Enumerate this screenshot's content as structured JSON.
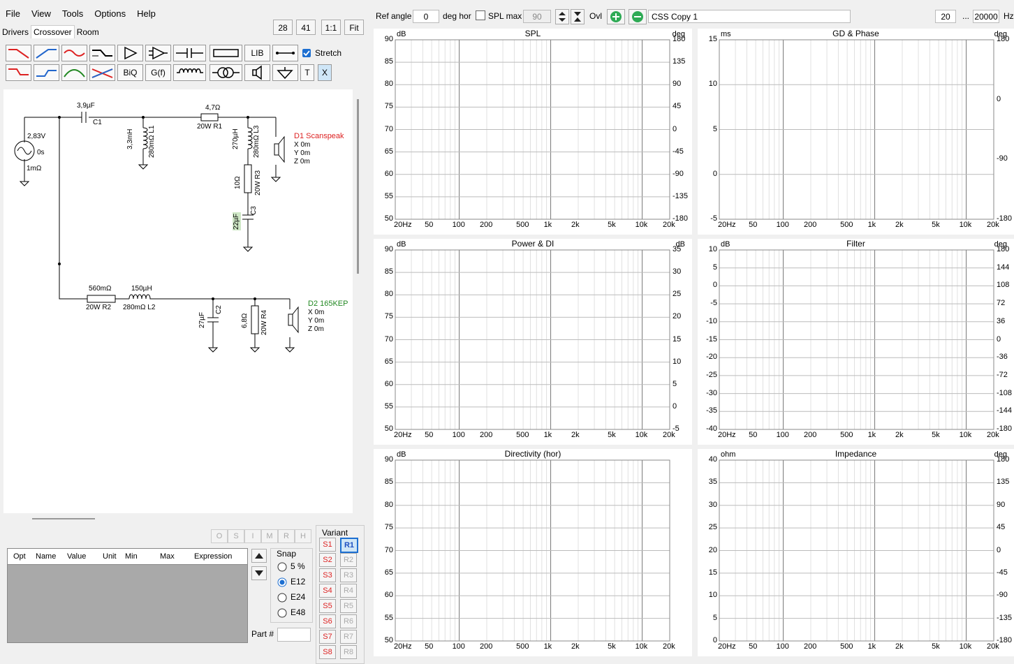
{
  "menu": [
    "File",
    "View",
    "Tools",
    "Options",
    "Help"
  ],
  "tabs": [
    "Drivers",
    "Crossover",
    "Room"
  ],
  "zoom_buttons": [
    "28",
    "41",
    "1:1",
    "Fit"
  ],
  "toolbar": {
    "lib": "LIB",
    "biq": "BiQ",
    "gf": "G(f)",
    "t": "T",
    "x": "X",
    "stretch_label": "Stretch"
  },
  "schematic": {
    "source_voltage": "2,83V",
    "source_delay": "0s",
    "source_res": "1mΩ",
    "c1_val": "3,9µF",
    "c1_name": "C1",
    "l1_val": "3,3mH",
    "l1_res": "280mΩ L1",
    "r1_val": "4,7Ω",
    "r1_name": "20W   R1",
    "l3_val": "270µH",
    "l3_res": "280mΩ L3",
    "r3_val": "10Ω",
    "r3_name": "20W  R3",
    "c3_val": "22µF",
    "c3_name": "C3",
    "d1_name": "D1 Scanspeak",
    "d1_x": "X 0m",
    "d1_y": "Y 0m",
    "d1_z": "Z 0m",
    "r2_val": "560mΩ",
    "r2_name": "20W   R2",
    "l2_val": "150µH",
    "l2_res": "280mΩ L2",
    "c2_val": "27µF",
    "c2_name": "C2",
    "r4_val": "6,8Ω",
    "r4_name": "20W  R4",
    "d2_name": "D2 165KEP",
    "d2_x": "X 0m",
    "d2_y": "Y 0m",
    "d2_z": "Z 0m"
  },
  "opt_buttons": [
    "O",
    "S",
    "I",
    "M",
    "R",
    "H"
  ],
  "table_headers": [
    "Opt",
    "Name",
    "Value",
    "Unit",
    "Min",
    "Max",
    "Expression"
  ],
  "snap": {
    "label": "Snap",
    "options": [
      "5 %",
      "E12",
      "E24",
      "E48"
    ],
    "selected": "E12"
  },
  "part_label": "Part #",
  "variant": {
    "label": "Variant",
    "s": [
      "S1",
      "S2",
      "S3",
      "S4",
      "S5",
      "S6",
      "S7",
      "S8"
    ],
    "r": [
      "R1",
      "R2",
      "R3",
      "R4",
      "R5",
      "R6",
      "R7",
      "R8"
    ],
    "active": "R1"
  },
  "topbar": {
    "ref_angle_label": "Ref angle",
    "ref_angle_value": "0",
    "deg_hor": "deg hor",
    "spl_max_label": "SPL max",
    "spl_max_value": "90",
    "ovl": "Ovl",
    "preset": "CSS Copy 1",
    "fmin": "20",
    "dots": "...",
    "fmax": "20000",
    "hz": "Hz"
  },
  "charts": [
    {
      "title": "SPL",
      "left_unit": "dB",
      "right_unit": "deg",
      "yticks": [
        "90",
        "85",
        "80",
        "75",
        "70",
        "65",
        "60",
        "55",
        "50"
      ],
      "rticks": [
        "180",
        "135",
        "90",
        "45",
        "0",
        "-45",
        "-90",
        "-135",
        "-180"
      ]
    },
    {
      "title": "GD & Phase",
      "left_unit": "ms",
      "right_unit": "deg",
      "yticks": [
        "15",
        "10",
        "5",
        "0",
        "-5"
      ],
      "rticks": [
        "180",
        "0",
        "-90",
        "-180"
      ]
    },
    {
      "title": "Power & DI",
      "left_unit": "dB",
      "right_unit": "dB",
      "yticks": [
        "90",
        "85",
        "80",
        "75",
        "70",
        "65",
        "60",
        "55",
        "50"
      ],
      "rticks": [
        "35",
        "30",
        "25",
        "20",
        "15",
        "10",
        "5",
        "0",
        "-5"
      ]
    },
    {
      "title": "Filter",
      "left_unit": "dB",
      "right_unit": "deg",
      "yticks": [
        "10",
        "5",
        "0",
        "-5",
        "-10",
        "-15",
        "-20",
        "-25",
        "-30",
        "-35",
        "-40"
      ],
      "rticks": [
        "180",
        "144",
        "108",
        "72",
        "36",
        "0",
        "-36",
        "-72",
        "-108",
        "-144",
        "-180"
      ]
    },
    {
      "title": "Directivity (hor)",
      "left_unit": "dB",
      "right_unit": "",
      "yticks": [
        "90",
        "85",
        "80",
        "75",
        "70",
        "65",
        "60",
        "55",
        "50"
      ],
      "rticks": []
    },
    {
      "title": "Impedance",
      "left_unit": "ohm",
      "right_unit": "deg",
      "yticks": [
        "40",
        "35",
        "30",
        "25",
        "20",
        "15",
        "10",
        "5",
        "0"
      ],
      "rticks": [
        "180",
        "135",
        "90",
        "45",
        "0",
        "-45",
        "-90",
        "-135",
        "-180"
      ]
    }
  ],
  "xticks": [
    "20Hz",
    "50",
    "100",
    "200",
    "500",
    "1k",
    "2k",
    "5k",
    "10k",
    "20k"
  ]
}
